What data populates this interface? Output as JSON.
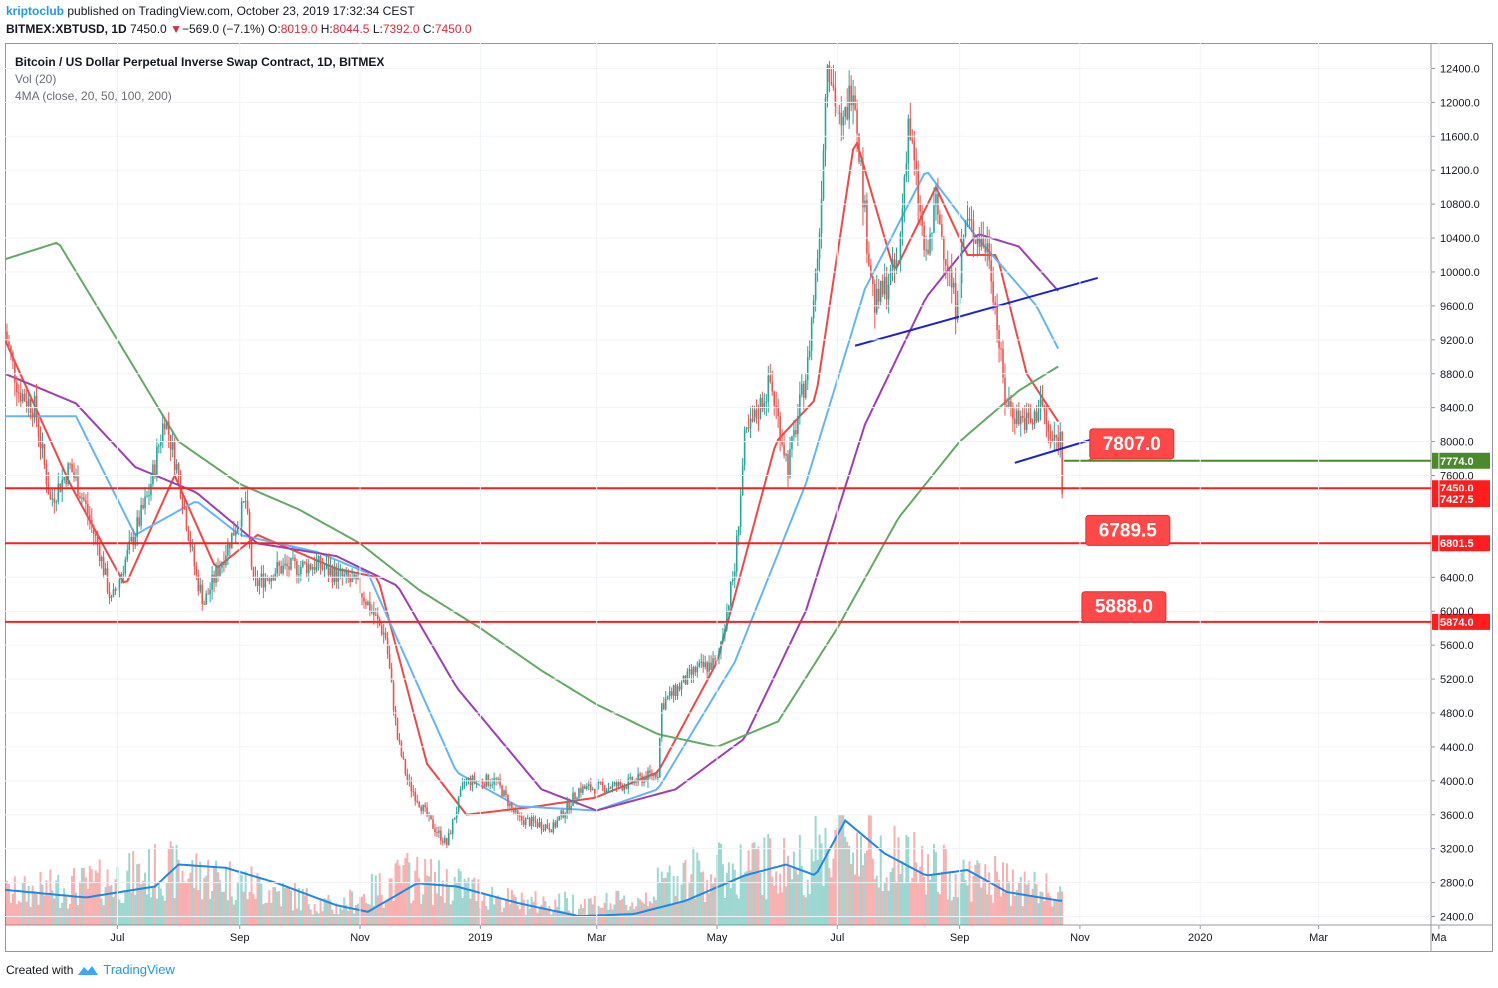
{
  "header": {
    "author": "kriptoclub",
    "published_text": " published on TradingView.com, October 23, 2019 17:32:34 CEST"
  },
  "symbol_line": {
    "symbol": "BITMEX:XBTUSD, 1D",
    "price": "7450.0",
    "arrow": "▼",
    "change": "−569.0 (−7.1%)",
    "o_label": "O:",
    "o_value": "8019.0",
    "h_label": "H:",
    "h_value": "8044.5",
    "l_label": "L:",
    "l_value": "7392.0",
    "c_label": "C:",
    "c_value": "7450.0"
  },
  "legend": {
    "title": "Bitcoin / US Dollar Perpetual Inverse Swap Contract, 1D, BITMEX",
    "volume": "Vol (20)",
    "ma": "4MA (close, 20, 50, 100, 200)"
  },
  "footer": {
    "created_with": "Created with",
    "brand": "TradingView"
  },
  "colors": {
    "up": "#26a69a",
    "down": "#ef5350",
    "ma20": "#f04747",
    "ma50": "#64b5f6",
    "ma100": "#9c3fb0",
    "ma200": "#66a866",
    "trendline": "#1f1fd6",
    "support": "#ff1d1d",
    "green_level": "#4a8a2a",
    "volume_ma": "#1e88e5"
  },
  "chart_data": {
    "type": "candlestick",
    "y_axis": {
      "ticks": [
        12400,
        12000,
        11600,
        11200,
        10800,
        10400,
        10000,
        9600,
        9200,
        8800,
        8400,
        8000,
        7600,
        6400,
        6000,
        5600,
        5200,
        4800,
        4400,
        4000,
        3600,
        3200,
        2800,
        2400
      ],
      "tick_labels": [
        "12400.0",
        "12000.0",
        "11600.0",
        "11200.0",
        "10800.0",
        "10400.0",
        "10000.0",
        "9600.0",
        "9200.0",
        "8800.0",
        "8400.0",
        "8000.0",
        "7600.0",
        "6400.0",
        "6000.0",
        "5600.0",
        "5200.0",
        "4800.0",
        "4400.0",
        "4000.0",
        "3600.0",
        "3200.0",
        "2800.0",
        "2400.0"
      ],
      "range": [
        2300,
        12700
      ]
    },
    "x_axis": {
      "labels": [
        "Jul",
        "Sep",
        "Nov",
        "2019",
        "Mar",
        "May",
        "Jul",
        "Sep",
        "Nov",
        "2020",
        "Mar",
        "Ma"
      ],
      "label_dates": [
        "2018-07-01",
        "2018-09-01",
        "2018-11-01",
        "2019-01-01",
        "2019-03-01",
        "2019-05-01",
        "2019-07-01",
        "2019-09-01",
        "2019-11-01",
        "2020-01-01",
        "2020-03-01",
        "2020-05-01"
      ],
      "range": [
        "2018-05-05",
        "2020-04-27"
      ]
    },
    "price_key_points": [
      {
        "date": "2018-05-05",
        "close": 9300
      },
      {
        "date": "2018-05-12",
        "close": 8600
      },
      {
        "date": "2018-05-20",
        "close": 8400
      },
      {
        "date": "2018-05-28",
        "close": 7300
      },
      {
        "date": "2018-06-07",
        "close": 7700
      },
      {
        "date": "2018-06-14",
        "close": 7300
      },
      {
        "date": "2018-06-22",
        "close": 6700
      },
      {
        "date": "2018-06-28",
        "close": 6100
      },
      {
        "date": "2018-07-05",
        "close": 6600
      },
      {
        "date": "2018-07-17",
        "close": 7400
      },
      {
        "date": "2018-07-25",
        "close": 8300
      },
      {
        "date": "2018-08-01",
        "close": 7600
      },
      {
        "date": "2018-08-10",
        "close": 6400
      },
      {
        "date": "2018-08-14",
        "close": 6100
      },
      {
        "date": "2018-08-30",
        "close": 7000
      },
      {
        "date": "2018-09-04",
        "close": 7300
      },
      {
        "date": "2018-09-08",
        "close": 6300
      },
      {
        "date": "2018-09-20",
        "close": 6500
      },
      {
        "date": "2018-10-10",
        "close": 6550
      },
      {
        "date": "2018-10-31",
        "close": 6300
      },
      {
        "date": "2018-11-14",
        "close": 5700
      },
      {
        "date": "2018-11-20",
        "close": 4500
      },
      {
        "date": "2018-11-25",
        "close": 4000
      },
      {
        "date": "2018-12-07",
        "close": 3500
      },
      {
        "date": "2018-12-15",
        "close": 3250
      },
      {
        "date": "2018-12-24",
        "close": 4000
      },
      {
        "date": "2019-01-09",
        "close": 4000
      },
      {
        "date": "2019-01-20",
        "close": 3550
      },
      {
        "date": "2019-02-07",
        "close": 3450
      },
      {
        "date": "2019-02-20",
        "close": 3900
      },
      {
        "date": "2019-03-15",
        "close": 3950
      },
      {
        "date": "2019-04-01",
        "close": 4100
      },
      {
        "date": "2019-04-03",
        "close": 4900
      },
      {
        "date": "2019-04-20",
        "close": 5300
      },
      {
        "date": "2019-05-01",
        "close": 5400
      },
      {
        "date": "2019-05-10",
        "close": 6500
      },
      {
        "date": "2019-05-15",
        "close": 8000
      },
      {
        "date": "2019-05-28",
        "close": 8700
      },
      {
        "date": "2019-06-06",
        "close": 7700
      },
      {
        "date": "2019-06-16",
        "close": 8900
      },
      {
        "date": "2019-06-22",
        "close": 10500
      },
      {
        "date": "2019-06-26",
        "close": 12600
      },
      {
        "date": "2019-07-03",
        "close": 11600
      },
      {
        "date": "2019-07-09",
        "close": 12300
      },
      {
        "date": "2019-07-16",
        "close": 10400
      },
      {
        "date": "2019-07-20",
        "close": 9600
      },
      {
        "date": "2019-08-01",
        "close": 10100
      },
      {
        "date": "2019-08-06",
        "close": 11800
      },
      {
        "date": "2019-08-15",
        "close": 10100
      },
      {
        "date": "2019-08-20",
        "close": 10800
      },
      {
        "date": "2019-08-30",
        "close": 9600
      },
      {
        "date": "2019-09-04",
        "close": 10600
      },
      {
        "date": "2019-09-16",
        "close": 10250
      },
      {
        "date": "2019-09-24",
        "close": 8500
      },
      {
        "date": "2019-09-30",
        "close": 8300
      },
      {
        "date": "2019-10-08",
        "close": 8200
      },
      {
        "date": "2019-10-12",
        "close": 8500
      },
      {
        "date": "2019-10-17",
        "close": 8000
      },
      {
        "date": "2019-10-22",
        "close": 8050
      },
      {
        "date": "2019-10-23",
        "close": 7450
      }
    ],
    "moving_averages": [
      {
        "name": "MA 20",
        "color_key": "ma20",
        "points": [
          {
            "date": "2018-05-05",
            "value": 9200
          },
          {
            "date": "2018-06-07",
            "value": 7500
          },
          {
            "date": "2018-07-05",
            "value": 6300
          },
          {
            "date": "2018-07-30",
            "value": 7600
          },
          {
            "date": "2018-08-20",
            "value": 6500
          },
          {
            "date": "2018-09-10",
            "value": 6900
          },
          {
            "date": "2018-10-20",
            "value": 6500
          },
          {
            "date": "2018-11-10",
            "value": 6400
          },
          {
            "date": "2018-12-05",
            "value": 4200
          },
          {
            "date": "2018-12-25",
            "value": 3600
          },
          {
            "date": "2019-01-30",
            "value": 3700
          },
          {
            "date": "2019-02-28",
            "value": 3800
          },
          {
            "date": "2019-04-01",
            "value": 4100
          },
          {
            "date": "2019-05-01",
            "value": 5400
          },
          {
            "date": "2019-05-31",
            "value": 8000
          },
          {
            "date": "2019-06-20",
            "value": 8500
          },
          {
            "date": "2019-07-10",
            "value": 11600
          },
          {
            "date": "2019-07-30",
            "value": 10000
          },
          {
            "date": "2019-08-20",
            "value": 11000
          },
          {
            "date": "2019-09-05",
            "value": 10200
          },
          {
            "date": "2019-09-20",
            "value": 10200
          },
          {
            "date": "2019-10-05",
            "value": 8800
          },
          {
            "date": "2019-10-22",
            "value": 8200
          }
        ]
      },
      {
        "name": "MA 50",
        "color_key": "ma50",
        "points": [
          {
            "date": "2018-05-05",
            "value": 8300
          },
          {
            "date": "2018-06-10",
            "value": 8300
          },
          {
            "date": "2018-07-10",
            "value": 6900
          },
          {
            "date": "2018-08-10",
            "value": 7300
          },
          {
            "date": "2018-09-01",
            "value": 6900
          },
          {
            "date": "2018-10-10",
            "value": 6700
          },
          {
            "date": "2018-11-05",
            "value": 6450
          },
          {
            "date": "2018-12-20",
            "value": 4100
          },
          {
            "date": "2019-01-20",
            "value": 3700
          },
          {
            "date": "2019-03-01",
            "value": 3650
          },
          {
            "date": "2019-04-01",
            "value": 3900
          },
          {
            "date": "2019-05-10",
            "value": 5400
          },
          {
            "date": "2019-06-15",
            "value": 7500
          },
          {
            "date": "2019-07-15",
            "value": 9800
          },
          {
            "date": "2019-08-15",
            "value": 11200
          },
          {
            "date": "2019-09-10",
            "value": 10400
          },
          {
            "date": "2019-10-10",
            "value": 9600
          },
          {
            "date": "2019-10-22",
            "value": 9050
          }
        ]
      },
      {
        "name": "MA 100",
        "color_key": "ma100",
        "points": [
          {
            "date": "2018-05-05",
            "value": 8800
          },
          {
            "date": "2018-06-10",
            "value": 8450
          },
          {
            "date": "2018-07-10",
            "value": 7700
          },
          {
            "date": "2018-08-10",
            "value": 7400
          },
          {
            "date": "2018-09-10",
            "value": 6800
          },
          {
            "date": "2018-10-20",
            "value": 6650
          },
          {
            "date": "2018-11-20",
            "value": 6300
          },
          {
            "date": "2018-12-20",
            "value": 5100
          },
          {
            "date": "2019-02-01",
            "value": 3900
          },
          {
            "date": "2019-03-01",
            "value": 3650
          },
          {
            "date": "2019-04-10",
            "value": 3900
          },
          {
            "date": "2019-05-15",
            "value": 4500
          },
          {
            "date": "2019-06-15",
            "value": 6000
          },
          {
            "date": "2019-07-15",
            "value": 8200
          },
          {
            "date": "2019-08-15",
            "value": 9700
          },
          {
            "date": "2019-09-10",
            "value": 10450
          },
          {
            "date": "2019-10-01",
            "value": 10300
          },
          {
            "date": "2019-10-22",
            "value": 9750
          }
        ]
      },
      {
        "name": "MA 200",
        "color_key": "ma200",
        "points": [
          {
            "date": "2018-05-05",
            "value": 10150
          },
          {
            "date": "2018-06-01",
            "value": 10350
          },
          {
            "date": "2018-07-01",
            "value": 9200
          },
          {
            "date": "2018-08-01",
            "value": 8000
          },
          {
            "date": "2018-09-01",
            "value": 7500
          },
          {
            "date": "2018-10-01",
            "value": 7200
          },
          {
            "date": "2018-11-01",
            "value": 6800
          },
          {
            "date": "2018-12-01",
            "value": 6250
          },
          {
            "date": "2019-01-01",
            "value": 5800
          },
          {
            "date": "2019-02-01",
            "value": 5300
          },
          {
            "date": "2019-03-01",
            "value": 4900
          },
          {
            "date": "2019-04-01",
            "value": 4550
          },
          {
            "date": "2019-05-01",
            "value": 4400
          },
          {
            "date": "2019-06-01",
            "value": 4700
          },
          {
            "date": "2019-07-01",
            "value": 5800
          },
          {
            "date": "2019-08-01",
            "value": 7100
          },
          {
            "date": "2019-09-01",
            "value": 8000
          },
          {
            "date": "2019-10-01",
            "value": 8600
          },
          {
            "date": "2019-10-22",
            "value": 8900
          }
        ]
      }
    ],
    "volume_profile": [
      {
        "date": "2018-05-05",
        "v": 0.35
      },
      {
        "date": "2018-06-15",
        "v": 0.45
      },
      {
        "date": "2018-07-25",
        "v": 0.62
      },
      {
        "date": "2018-08-20",
        "v": 0.55
      },
      {
        "date": "2018-09-20",
        "v": 0.38
      },
      {
        "date": "2018-10-20",
        "v": 0.2
      },
      {
        "date": "2018-11-25",
        "v": 0.55
      },
      {
        "date": "2018-12-20",
        "v": 0.45
      },
      {
        "date": "2019-01-20",
        "v": 0.25
      },
      {
        "date": "2019-02-20",
        "v": 0.25
      },
      {
        "date": "2019-03-20",
        "v": 0.25
      },
      {
        "date": "2019-04-10",
        "v": 0.55
      },
      {
        "date": "2019-05-15",
        "v": 0.65
      },
      {
        "date": "2019-06-15",
        "v": 0.7
      },
      {
        "date": "2019-06-30",
        "v": 1.0
      },
      {
        "date": "2019-07-20",
        "v": 0.85
      },
      {
        "date": "2019-08-20",
        "v": 0.6
      },
      {
        "date": "2019-09-20",
        "v": 0.5
      },
      {
        "date": "2019-10-22",
        "v": 0.35
      }
    ],
    "volume_ma_points": [
      {
        "date": "2018-05-05",
        "v": 0.32
      },
      {
        "date": "2018-06-15",
        "v": 0.25
      },
      {
        "date": "2018-07-20",
        "v": 0.35
      },
      {
        "date": "2018-08-01",
        "v": 0.55
      },
      {
        "date": "2018-08-25",
        "v": 0.52
      },
      {
        "date": "2018-09-20",
        "v": 0.38
      },
      {
        "date": "2018-10-20",
        "v": 0.18
      },
      {
        "date": "2018-11-05",
        "v": 0.12
      },
      {
        "date": "2018-11-30",
        "v": 0.38
      },
      {
        "date": "2018-12-20",
        "v": 0.35
      },
      {
        "date": "2019-01-20",
        "v": 0.2
      },
      {
        "date": "2019-02-20",
        "v": 0.08
      },
      {
        "date": "2019-03-20",
        "v": 0.1
      },
      {
        "date": "2019-04-15",
        "v": 0.22
      },
      {
        "date": "2019-05-15",
        "v": 0.45
      },
      {
        "date": "2019-06-05",
        "v": 0.55
      },
      {
        "date": "2019-06-20",
        "v": 0.45
      },
      {
        "date": "2019-07-05",
        "v": 0.95
      },
      {
        "date": "2019-07-25",
        "v": 0.65
      },
      {
        "date": "2019-08-15",
        "v": 0.45
      },
      {
        "date": "2019-09-05",
        "v": 0.5
      },
      {
        "date": "2019-09-25",
        "v": 0.3
      },
      {
        "date": "2019-10-22",
        "v": 0.22
      }
    ],
    "trendlines": [
      {
        "name": "upper-trendline",
        "from": {
          "date": "2019-07-10",
          "price": 9130
        },
        "to": {
          "date": "2019-11-10",
          "price": 9930
        }
      },
      {
        "name": "lower-trendline",
        "from": {
          "date": "2019-09-29",
          "price": 7750
        },
        "to": {
          "date": "2019-11-12",
          "price": 8060
        }
      }
    ],
    "horizontal_levels": [
      {
        "name": "level-7774",
        "price": 7774.0,
        "label": "7774.0",
        "color_key": "green_level",
        "start": "2019-10-24"
      },
      {
        "name": "level-7450",
        "price": 7450.0,
        "label": "7450.0",
        "color_key": "support",
        "start": "2018-05-05"
      },
      {
        "name": "level-6801",
        "price": 6801.5,
        "label": "6801.5",
        "color_key": "support",
        "start": "2018-05-05"
      },
      {
        "name": "level-5874",
        "price": 5874.0,
        "label": "5874.0",
        "color_key": "support",
        "start": "2018-05-05"
      }
    ],
    "extra_axis_labels": [
      {
        "name": "price-7427",
        "price": 7427.5,
        "label": "7427.5"
      }
    ],
    "callouts": [
      {
        "name": "callout-7807",
        "text": "7807.0",
        "anchor": {
          "date": "2019-11-04",
          "price": 7774
        },
        "box_date": "2019-11-06",
        "box_price": 8150
      },
      {
        "name": "callout-6789",
        "text": "6789.5",
        "anchor": {
          "date": "2019-11-02",
          "price": 6801.5
        },
        "box_date": "2019-11-04",
        "box_price": 7130
      },
      {
        "name": "callout-5888",
        "text": "5888.0",
        "anchor": {
          "date": "2019-10-31",
          "price": 5874
        },
        "box_date": "2019-11-02",
        "box_price": 6230
      }
    ]
  }
}
